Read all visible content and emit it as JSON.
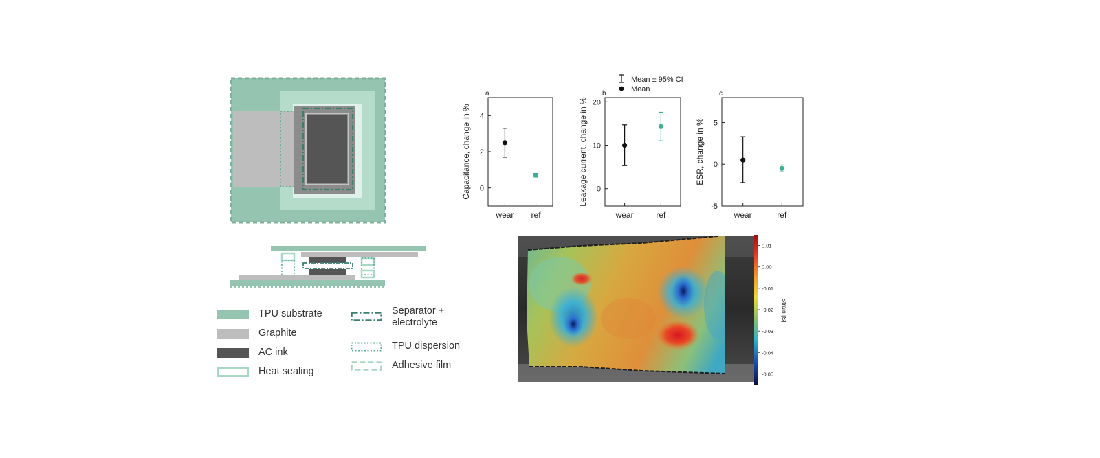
{
  "colors": {
    "tpu_substrate": "#95c4b0",
    "tpu_light": "#b5dccb",
    "heat_sealing": "#a8d8c4",
    "graphite": "#bdbdbd",
    "ac_ink": "#555555",
    "dashed_green": "#3d7f6e",
    "dotted_green": "#5fae96",
    "wear_marker": "#111111",
    "ref_marker": "#3fae93"
  },
  "legend": {
    "col1": [
      {
        "label": "TPU substrate",
        "swatch": "filled-tpu"
      },
      {
        "label": "Graphite",
        "swatch": "filled-graphite"
      },
      {
        "label": "AC ink",
        "swatch": "filled-ac"
      },
      {
        "label": "Heat sealing",
        "swatch": "outline-heat"
      }
    ],
    "col2": [
      {
        "label": "Separator +\nelectrolyte",
        "swatch": "dashdot"
      },
      {
        "label": "TPU dispersion",
        "swatch": "dotted"
      },
      {
        "label": "Adhesive film",
        "swatch": "dashed"
      }
    ]
  },
  "chart_legend": {
    "ci": "Mean ± 95% CI",
    "mean": "Mean"
  },
  "chart_data": [
    {
      "type": "scatter",
      "panel_label": "a",
      "ylabel": "Capacitance, change in %",
      "categories": [
        "wear",
        "ref"
      ],
      "ylim": [
        -1,
        5
      ],
      "yticks": [
        0,
        2,
        4
      ],
      "means": [
        2.5,
        0.7
      ],
      "ci_low": [
        1.7,
        0.6
      ],
      "ci_high": [
        3.3,
        0.8
      ]
    },
    {
      "type": "scatter",
      "panel_label": "b",
      "ylabel": "Leakage current, change in %",
      "categories": [
        "wear",
        "ref"
      ],
      "ylim": [
        -4,
        21
      ],
      "yticks": [
        0,
        10,
        20
      ],
      "means": [
        10,
        14.3
      ],
      "ci_low": [
        5.3,
        11.0
      ],
      "ci_high": [
        14.7,
        17.6
      ]
    },
    {
      "type": "scatter",
      "panel_label": "c",
      "ylabel": "ESR, change in %",
      "categories": [
        "wear",
        "ref"
      ],
      "ylim": [
        -5,
        8
      ],
      "yticks": [
        -5,
        0,
        5
      ],
      "means": [
        0.5,
        -0.5
      ],
      "ci_low": [
        -2.2,
        -0.9
      ],
      "ci_high": [
        3.3,
        -0.1
      ]
    },
    {
      "type": "heatmap",
      "colorbar_label": "Strain [S]",
      "colorbar_ticks": [
        "0.01",
        "0.00",
        "-0.01",
        "-0.02",
        "-0.03",
        "-0.04",
        "-0.05"
      ],
      "range": [
        -0.055,
        0.015
      ]
    }
  ]
}
